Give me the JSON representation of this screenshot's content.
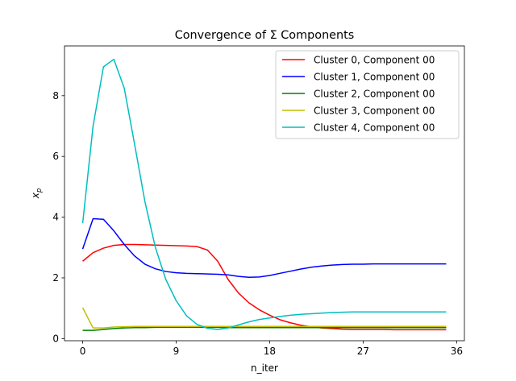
{
  "chart_data": {
    "type": "line",
    "title": "Convergence of Σ Components",
    "xlabel": "n_iter",
    "ylabel": "x_p",
    "xlim": [
      -1.75,
      36.75
    ],
    "ylim": [
      -0.07,
      9.64
    ],
    "xticks": [
      0,
      9,
      18,
      27,
      36
    ],
    "yticks": [
      0,
      2,
      4,
      6,
      8
    ],
    "grid": false,
    "legend_position": "top-right",
    "x": [
      0,
      1,
      2,
      3,
      4,
      5,
      6,
      7,
      8,
      9,
      10,
      11,
      12,
      13,
      14,
      15,
      16,
      17,
      18,
      19,
      20,
      21,
      22,
      23,
      24,
      25,
      26,
      27,
      28,
      29,
      30,
      31,
      32,
      33,
      34,
      35
    ],
    "series": [
      {
        "name": "Cluster 0, Component 00",
        "color": "#ff0000",
        "values": [
          2.55,
          2.83,
          2.98,
          3.07,
          3.1,
          3.1,
          3.09,
          3.08,
          3.07,
          3.06,
          3.05,
          3.03,
          2.92,
          2.55,
          1.95,
          1.5,
          1.18,
          0.95,
          0.77,
          0.62,
          0.52,
          0.44,
          0.39,
          0.35,
          0.33,
          0.31,
          0.3,
          0.3,
          0.3,
          0.3,
          0.29,
          0.29,
          0.29,
          0.29,
          0.29,
          0.29
        ]
      },
      {
        "name": "Cluster 1, Component 00",
        "color": "#0000ff",
        "values": [
          2.95,
          3.95,
          3.93,
          3.55,
          3.1,
          2.72,
          2.45,
          2.3,
          2.21,
          2.17,
          2.15,
          2.14,
          2.13,
          2.12,
          2.1,
          2.05,
          2.02,
          2.03,
          2.08,
          2.15,
          2.22,
          2.29,
          2.35,
          2.39,
          2.42,
          2.44,
          2.45,
          2.45,
          2.46,
          2.46,
          2.46,
          2.46,
          2.46,
          2.46,
          2.46,
          2.46
        ]
      },
      {
        "name": "Cluster 2, Component 00",
        "color": "#008000",
        "values": [
          0.27,
          0.27,
          0.3,
          0.33,
          0.35,
          0.36,
          0.36,
          0.37,
          0.37,
          0.37,
          0.37,
          0.37,
          0.37,
          0.37,
          0.36,
          0.36,
          0.36,
          0.36,
          0.36,
          0.36,
          0.36,
          0.36,
          0.36,
          0.36,
          0.36,
          0.36,
          0.36,
          0.36,
          0.36,
          0.36,
          0.36,
          0.36,
          0.36,
          0.36,
          0.36,
          0.36
        ]
      },
      {
        "name": "Cluster 3, Component 00",
        "color": "#bfbf00",
        "values": [
          1.02,
          0.35,
          0.35,
          0.38,
          0.39,
          0.4,
          0.4,
          0.4,
          0.4,
          0.4,
          0.4,
          0.4,
          0.4,
          0.4,
          0.4,
          0.4,
          0.4,
          0.4,
          0.4,
          0.4,
          0.4,
          0.4,
          0.4,
          0.4,
          0.4,
          0.4,
          0.4,
          0.4,
          0.4,
          0.4,
          0.4,
          0.4,
          0.4,
          0.4,
          0.4,
          0.4
        ]
      },
      {
        "name": "Cluster 4, Component 00",
        "color": "#00bfbf",
        "values": [
          3.8,
          7.0,
          8.95,
          9.2,
          8.25,
          6.4,
          4.5,
          3.0,
          1.95,
          1.25,
          0.75,
          0.47,
          0.34,
          0.3,
          0.35,
          0.45,
          0.55,
          0.63,
          0.68,
          0.73,
          0.77,
          0.8,
          0.82,
          0.84,
          0.86,
          0.87,
          0.88,
          0.88,
          0.88,
          0.88,
          0.88,
          0.88,
          0.88,
          0.88,
          0.88,
          0.88
        ]
      }
    ]
  }
}
